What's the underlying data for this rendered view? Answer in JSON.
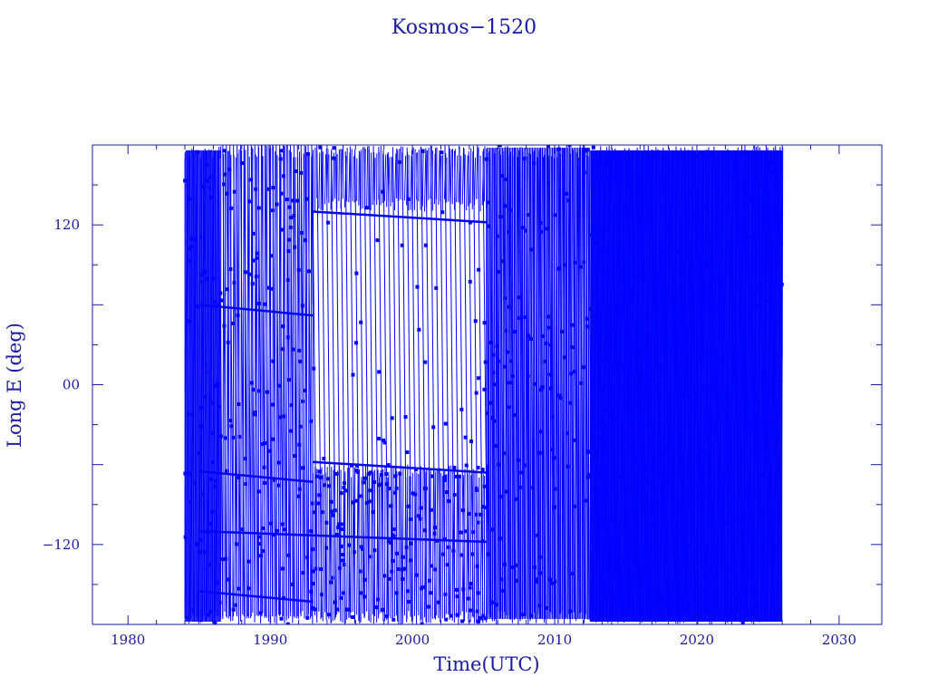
{
  "chart_data": {
    "type": "line",
    "title": "Kosmos−1520",
    "xlabel": "Time(UTC)",
    "ylabel": "Long E (deg)",
    "xlim": [
      1977.5,
      2033.0
    ],
    "ylim": [
      -180,
      180
    ],
    "x_ticks": [
      1980,
      1990,
      2000,
      2010,
      2020,
      2030
    ],
    "x_tick_labels": [
      "1980",
      "1990",
      "2000",
      "2010",
      "2020",
      "2030"
    ],
    "y_ticks": [
      -120,
      0,
      120
    ],
    "y_tick_labels": [
      "−120",
      "00",
      "120"
    ],
    "grid": false,
    "colors": {
      "axes": "#1a1aa6",
      "data": "#0000ff"
    },
    "series": [
      {
        "segments": [
          {
            "t0": 1984.0,
            "t1": 1986.5,
            "wraps_per_year": 14,
            "start_lon": 170
          },
          {
            "t0": 1986.5,
            "t1": 1993.0,
            "wraps_per_year": 4.0,
            "start_lon": 60
          },
          {
            "t0": 1993.0,
            "t1": 2005.2,
            "wraps_per_year": 3.0,
            "start_lon": 130
          },
          {
            "t0": 2005.2,
            "t1": 2012.5,
            "wraps_per_year": 10,
            "start_lon": -50
          },
          {
            "t0": 2012.5,
            "t1": 2026.0,
            "wraps_per_year": 20,
            "start_lon": 20
          }
        ],
        "bands": [
          {
            "t0": 1984.0,
            "t1": 1993.0,
            "lon_min": -180,
            "lon_max": 180
          },
          {
            "t0": 1993.0,
            "t1": 2005.2,
            "lon_min": -180,
            "lon_max": -60
          },
          {
            "t0": 1993.0,
            "t1": 2005.2,
            "lon_min": 130,
            "lon_max": 180
          },
          {
            "t0": 2005.2,
            "t1": 2026.0,
            "lon_min": -180,
            "lon_max": 180
          }
        ]
      }
    ]
  }
}
